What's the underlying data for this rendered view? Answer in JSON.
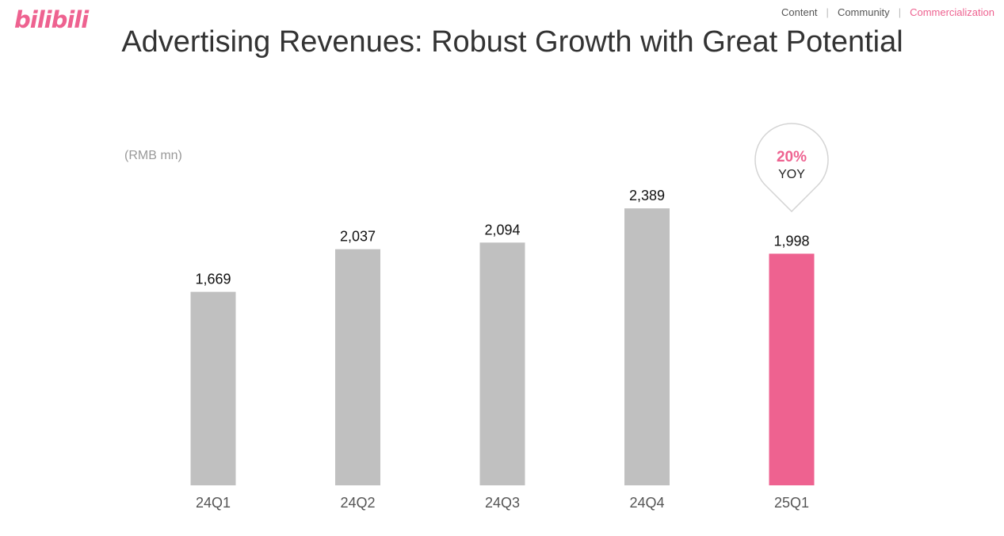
{
  "brand": {
    "logo": "bilibili",
    "color": "#ee6290"
  },
  "nav": {
    "items": [
      "Content",
      "Community",
      "Commercialization"
    ],
    "active": "Commercialization"
  },
  "title": "Advertising Revenues: Robust Growth with Great Potential",
  "colors": {
    "bar_default": "#c0c0c0",
    "bar_highlight": "#ee6290"
  },
  "chart_data": {
    "type": "bar",
    "title": "Advertising Revenues: Robust Growth with Great Potential",
    "unit_label": "(RMB mn)",
    "categories": [
      "24Q1",
      "24Q2",
      "24Q3",
      "24Q4",
      "25Q1"
    ],
    "values": [
      1669,
      2037,
      2094,
      2389,
      1998
    ],
    "value_labels": [
      "1,669",
      "2,037",
      "2,094",
      "2,389",
      "1,998"
    ],
    "highlight_category": "25Q1",
    "ylim": [
      0,
      2800
    ],
    "grid": false,
    "legend": "none",
    "annotation": {
      "category": "25Q1",
      "value_text": "20%",
      "label": "YOY"
    }
  }
}
